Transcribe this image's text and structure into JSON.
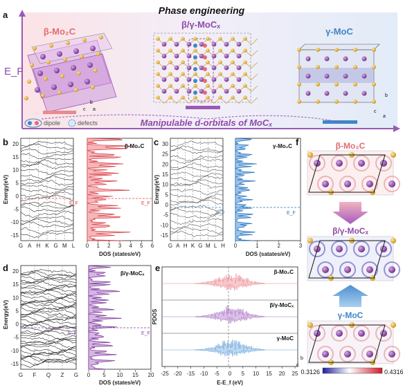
{
  "panel_a": {
    "letter": "a",
    "title": "Phase engineering",
    "beta_label": "β-Mo₂C",
    "mixed_label": "β/γ-MoCₓ",
    "gamma_label": "γ-MoC",
    "ef_label": "E_F",
    "caption": "Manipulable d-orbitals of MoCₓ",
    "legend_dipole": "dipole",
    "legend_defects": "defects",
    "axes_b": "b",
    "axes_c": "c",
    "axes_a": "a"
  },
  "panel_b": {
    "letter": "b",
    "ylabel": "Energy(eV)",
    "yticks": [
      "20",
      "15",
      "10",
      "5",
      "0",
      "-5",
      "-10",
      "-15"
    ],
    "kpoints": [
      "G",
      "A",
      "H",
      "K",
      "G",
      "M",
      "L"
    ],
    "ef": "E_F",
    "dos_title": "β-Mo₂C",
    "dos_xlabel": "DOS (states/eV)",
    "dos_xticks": [
      "0",
      "1",
      "2",
      "3",
      "4",
      "5",
      "6"
    ],
    "dos_ef": "E_F"
  },
  "panel_c": {
    "letter": "c",
    "ylabel": "Energy(eV)",
    "yticks": [
      "30",
      "25",
      "20",
      "15",
      "10",
      "5",
      "0",
      "-5",
      "-10",
      "-15"
    ],
    "kpoints": [
      "G",
      "A",
      "H",
      "K",
      "G",
      "M",
      "L",
      "H"
    ],
    "ef": "E_F",
    "dos_title": "γ-Mo₂C",
    "dos_xlabel": "DOS (satates/eV)",
    "dos_xticks": [
      "0",
      "1",
      "2",
      "3"
    ],
    "dos_ef": "E_F"
  },
  "panel_d": {
    "letter": "d",
    "ylabel": "Energy(eV)",
    "yticks": [
      "20",
      "15",
      "10",
      "5",
      "0",
      "-5",
      "-10",
      "-15"
    ],
    "kpoints": [
      "G",
      "F",
      "Q",
      "Z",
      "G"
    ],
    "ef": "E_F",
    "dos_title": "β/γ-MoCₓ",
    "dos_xlabel": "DOS (states/eV)",
    "dos_xticks": [
      "0",
      "5",
      "10",
      "15",
      "20"
    ],
    "dos_ef": "E_F"
  },
  "panel_e": {
    "letter": "e",
    "ylabel": "PDOS",
    "xlabel": "E-E_f (eV)",
    "xticks": [
      "-25",
      "-20",
      "-15",
      "-10",
      "-5",
      "0",
      "5",
      "10",
      "15",
      "20",
      "25"
    ],
    "traces": [
      "β-Mo₂C",
      "β/γ-MoCₓ",
      "γ-MoC"
    ],
    "colors": [
      "#e8828a",
      "#a36bc0",
      "#5b9bd5"
    ]
  },
  "panel_f": {
    "letter": "f",
    "top": "β-Mo₂C",
    "middle": "β/γ-MoCₓ",
    "bottom": "γ-MoC",
    "cbar_min": "0.3126",
    "cbar_max": "0.4316",
    "axis_b": "b",
    "axis_c": "c"
  },
  "colors": {
    "beta": "#e36b73",
    "mixed": "#8e4ba8",
    "gamma": "#3f86c9",
    "mo_atom": "#7a3a8e",
    "c_atom": "#e8b834"
  }
}
